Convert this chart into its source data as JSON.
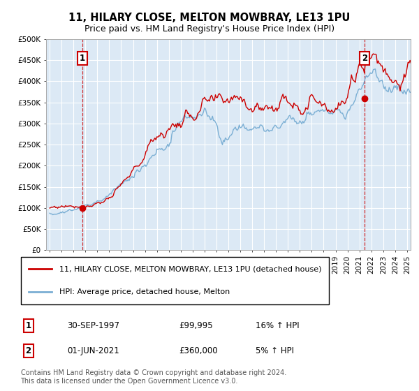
{
  "title": "11, HILARY CLOSE, MELTON MOWBRAY, LE13 1PU",
  "subtitle": "Price paid vs. HM Land Registry's House Price Index (HPI)",
  "legend_line1": "11, HILARY CLOSE, MELTON MOWBRAY, LE13 1PU (detached house)",
  "legend_line2": "HPI: Average price, detached house, Melton",
  "annotation1_date": "30-SEP-1997",
  "annotation1_price": "£99,995",
  "annotation1_hpi": "16% ↑ HPI",
  "annotation2_date": "01-JUN-2021",
  "annotation2_price": "£360,000",
  "annotation2_hpi": "5% ↑ HPI",
  "footer": "Contains HM Land Registry data © Crown copyright and database right 2024.\nThis data is licensed under the Open Government Licence v3.0.",
  "sale1_x": 1997.75,
  "sale1_y": 99995,
  "sale2_x": 2021.42,
  "sale2_y": 360000,
  "red_line_color": "#cc0000",
  "blue_line_color": "#7bafd4",
  "dashed_line_color": "#cc0000",
  "annotation_box_color": "#cc0000",
  "background_color": "#ffffff",
  "plot_bg_color": "#dce9f5",
  "grid_color": "#ffffff",
  "ylim": [
    0,
    500000
  ],
  "xlim_start": 1994.7,
  "xlim_end": 2025.3,
  "yticks": [
    0,
    50000,
    100000,
    150000,
    200000,
    250000,
    300000,
    350000,
    400000,
    450000,
    500000
  ],
  "ytick_labels": [
    "£0",
    "£50K",
    "£100K",
    "£150K",
    "£200K",
    "£250K",
    "£300K",
    "£350K",
    "£400K",
    "£450K",
    "£500K"
  ]
}
